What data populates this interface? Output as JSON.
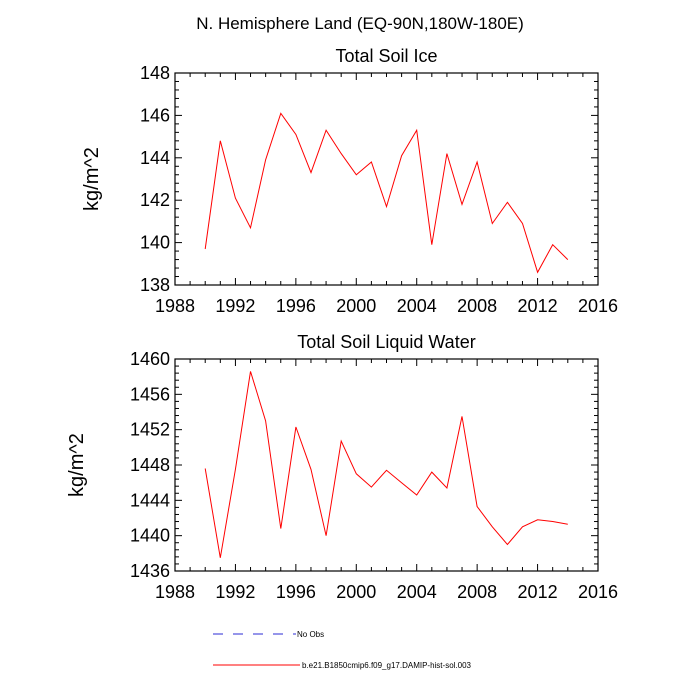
{
  "figure": {
    "title": "N. Hemisphere Land (EQ-90N,180W-180E)"
  },
  "chart_data": [
    {
      "type": "line",
      "title": "Total Soil Ice",
      "ylabel": "kg/m^2",
      "xlabel": "",
      "xlim": [
        1988,
        2016
      ],
      "ylim": [
        138,
        148
      ],
      "xticks": [
        1988,
        1992,
        1996,
        2000,
        2004,
        2008,
        2012,
        2016
      ],
      "yticks": [
        138,
        140,
        142,
        144,
        146,
        148
      ],
      "series": [
        {
          "name": "b.e21.B1850cmip6.f09_g17.DAMIP-hist-sol.003",
          "color": "#ff0000",
          "x": [
            1990,
            1991,
            1992,
            1993,
            1994,
            1995,
            1996,
            1997,
            1998,
            1999,
            2000,
            2001,
            2002,
            2003,
            2004,
            2005,
            2006,
            2007,
            2008,
            2009,
            2010,
            2011,
            2012,
            2013,
            2014
          ],
          "y": [
            139.7,
            144.8,
            142.1,
            140.7,
            143.9,
            146.1,
            145.1,
            143.3,
            145.3,
            144.2,
            143.2,
            143.8,
            141.7,
            144.1,
            145.3,
            139.9,
            144.2,
            141.8,
            143.8,
            140.9,
            141.9,
            140.9,
            138.6,
            139.9,
            139.2
          ]
        }
      ]
    },
    {
      "type": "line",
      "title": "Total Soil Liquid Water",
      "ylabel": "kg/m^2",
      "xlabel": "",
      "xlim": [
        1988,
        2016
      ],
      "ylim": [
        1436,
        1460
      ],
      "xticks": [
        1988,
        1992,
        1996,
        2000,
        2004,
        2008,
        2012,
        2016
      ],
      "yticks": [
        1436,
        1440,
        1444,
        1448,
        1452,
        1456,
        1460
      ],
      "series": [
        {
          "name": "b.e21.B1850cmip6.f09_g17.DAMIP-hist-sol.003",
          "color": "#ff0000",
          "x": [
            1990,
            1991,
            1992,
            1993,
            1994,
            1995,
            1996,
            1997,
            1998,
            1999,
            2000,
            2001,
            2002,
            2003,
            2004,
            2005,
            2006,
            2007,
            2008,
            2009,
            2010,
            2011,
            2012,
            2013,
            2014
          ],
          "y": [
            1447.6,
            1437.5,
            1447.5,
            1458.6,
            1453.0,
            1440.8,
            1452.3,
            1447.5,
            1440.0,
            1450.7,
            1447.0,
            1445.5,
            1447.4,
            1446.0,
            1444.6,
            1447.2,
            1445.4,
            1453.5,
            1443.3,
            1441.0,
            1439.0,
            1441.0,
            1441.8,
            1441.6,
            1441.3
          ]
        }
      ]
    }
  ],
  "legend": {
    "entries": [
      {
        "label": "No Obs",
        "color": "#2b2bd6",
        "style": "dashed"
      },
      {
        "label": "b.e21.B1850cmip6.f09_g17.DAMIP-hist-sol.003",
        "color": "#ff0000",
        "style": "solid"
      }
    ]
  }
}
